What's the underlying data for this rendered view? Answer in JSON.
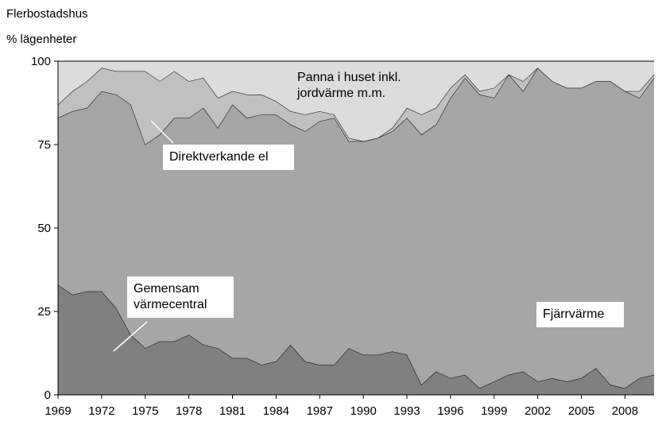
{
  "chart_data": {
    "type": "stacked-area",
    "title": "Flerbostadshus",
    "ylabel": "% lägenheter",
    "x": [
      1969,
      1970,
      1971,
      1972,
      1973,
      1974,
      1975,
      1976,
      1977,
      1978,
      1979,
      1980,
      1981,
      1982,
      1983,
      1984,
      1985,
      1986,
      1987,
      1988,
      1989,
      1990,
      1991,
      1992,
      1993,
      1994,
      1995,
      1996,
      1997,
      1998,
      1999,
      2000,
      2001,
      2002,
      2003,
      2004,
      2005,
      2006,
      2007,
      2008,
      2009,
      2010
    ],
    "xlim": [
      1969,
      2010
    ],
    "xticks": [
      1969,
      1972,
      1975,
      1978,
      1981,
      1984,
      1987,
      1990,
      1993,
      1996,
      1999,
      2002,
      2005,
      2008
    ],
    "ylim": [
      0,
      100
    ],
    "yticks": [
      0,
      25,
      50,
      75,
      100
    ],
    "series": [
      {
        "name": "Gemensam värmecentral",
        "color": "#808080",
        "values": [
          33,
          30,
          31,
          31,
          26,
          18,
          14,
          16,
          16,
          18,
          15,
          14,
          11,
          11,
          9,
          10,
          15,
          10,
          9,
          9,
          14,
          12,
          12,
          13,
          12,
          3,
          7,
          5,
          6,
          2,
          4,
          6,
          7,
          4,
          5,
          4,
          5,
          8,
          3,
          2,
          5,
          6
        ]
      },
      {
        "name": "Fjärrvärme",
        "color": "#a6a6a6",
        "values": [
          50,
          55,
          55,
          60,
          64,
          69,
          61,
          62,
          67,
          65,
          71,
          66,
          76,
          72,
          75,
          74,
          66,
          69,
          73,
          74,
          62,
          64,
          65,
          66,
          71,
          75,
          74,
          84,
          89,
          88,
          85,
          90,
          84,
          94,
          89,
          88,
          87,
          86,
          91,
          89,
          84,
          89
        ]
      },
      {
        "name": "Direktverkande el",
        "color": "#c0c0c0",
        "values": [
          4,
          6,
          8,
          7,
          7,
          10,
          22,
          16,
          14,
          11,
          9,
          9,
          4,
          7,
          6,
          4,
          4,
          5,
          3,
          1,
          1,
          0,
          0,
          1,
          3,
          6,
          5,
          3,
          1,
          1,
          3,
          0,
          3,
          0,
          0,
          0,
          0,
          0,
          0,
          0,
          2,
          1
        ]
      },
      {
        "name": "Panna i huset inkl. jordvärme m.m.",
        "color": "#dcdcdc",
        "values": [
          13,
          9,
          6,
          2,
          3,
          3,
          3,
          6,
          3,
          6,
          5,
          11,
          9,
          10,
          10,
          12,
          15,
          16,
          15,
          16,
          23,
          24,
          23,
          20,
          14,
          16,
          14,
          8,
          4,
          9,
          8,
          4,
          6,
          2,
          6,
          8,
          8,
          6,
          6,
          9,
          9,
          4
        ]
      }
    ]
  }
}
